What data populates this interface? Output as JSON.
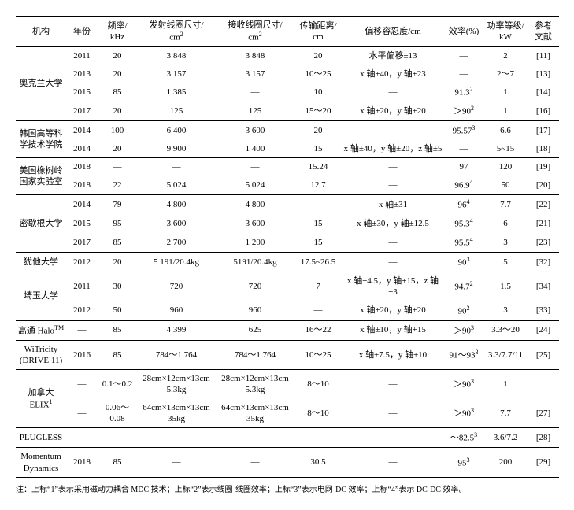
{
  "columns": [
    {
      "l1": "机构",
      "l2": ""
    },
    {
      "l1": "年份",
      "l2": ""
    },
    {
      "l1": "频率/",
      "l2": "kHz"
    },
    {
      "l1": "发射线圈尺寸/",
      "l2": "cm²"
    },
    {
      "l1": "接收线圈尺寸/",
      "l2": "cm²"
    },
    {
      "l1": "传输距离/",
      "l2": "cm"
    },
    {
      "l1": "偏移容忍度/cm",
      "l2": ""
    },
    {
      "l1": "效率(%)",
      "l2": ""
    },
    {
      "l1": "功率等级/",
      "l2": "kW"
    },
    {
      "l1": "参考",
      "l2": "文献"
    }
  ],
  "groups": [
    {
      "inst": "奥克兰大学",
      "rows": [
        {
          "year": "2011",
          "freq": "20",
          "tx": "3 848",
          "rx": "3 848",
          "dist": "20",
          "offs": "水平偏移±13",
          "eff": "—",
          "pwr": "2",
          "ref": "[11]"
        },
        {
          "year": "2013",
          "freq": "20",
          "tx": "3 157",
          "rx": "3 157",
          "dist": "10～25",
          "offs": "x 轴±40，y 轴±23",
          "eff": "—",
          "pwr": "2～7",
          "ref": "[13]"
        },
        {
          "year": "2015",
          "freq": "85",
          "tx": "1 385",
          "rx": "—",
          "dist": "10",
          "offs": "—",
          "eff": "91.3²",
          "pwr": "1",
          "ref": "[14]"
        },
        {
          "year": "2017",
          "freq": "20",
          "tx": "125",
          "rx": "125",
          "dist": "15～20",
          "offs": "x 轴±20，y 轴±20",
          "eff": "＞90²",
          "pwr": "1",
          "ref": "[16]"
        }
      ]
    },
    {
      "inst": "韩国高等科学技术学院",
      "rows": [
        {
          "year": "2014",
          "freq": "100",
          "tx": "6 400",
          "rx": "3 600",
          "dist": "20",
          "offs": "—",
          "eff": "95.57³",
          "pwr": "6.6",
          "ref": "[17]"
        },
        {
          "year": "2014",
          "freq": "20",
          "tx": "9 900",
          "rx": "1 400",
          "dist": "15",
          "offs": "x 轴±40，y 轴±20，z 轴±5",
          "eff": "—",
          "pwr": "5~15",
          "ref": "[18]"
        }
      ]
    },
    {
      "inst": "美国橡树岭国家实验室",
      "rows": [
        {
          "year": "2018",
          "freq": "—",
          "tx": "—",
          "rx": "—",
          "dist": "15.24",
          "offs": "—",
          "eff": "97",
          "pwr": "120",
          "ref": "[19]"
        },
        {
          "year": "2018",
          "freq": "22",
          "tx": "5 024",
          "rx": "5 024",
          "dist": "12.7",
          "offs": "—",
          "eff": "96.9⁴",
          "pwr": "50",
          "ref": "[20]"
        }
      ]
    },
    {
      "inst": "密歇根大学",
      "rows": [
        {
          "year": "2014",
          "freq": "79",
          "tx": "4 800",
          "rx": "4 800",
          "dist": "—",
          "offs": "x 轴±31",
          "eff": "96⁴",
          "pwr": "7.7",
          "ref": "[22]"
        },
        {
          "year": "2015",
          "freq": "95",
          "tx": "3 600",
          "rx": "3 600",
          "dist": "15",
          "offs": "x 轴±30，y 轴±12.5",
          "eff": "95.3⁴",
          "pwr": "6",
          "ref": "[21]"
        },
        {
          "year": "2017",
          "freq": "85",
          "tx": "2 700",
          "rx": "1 200",
          "dist": "15",
          "offs": "—",
          "eff": "95.5⁴",
          "pwr": "3",
          "ref": "[23]"
        }
      ]
    },
    {
      "inst": "犹他大学",
      "rows": [
        {
          "year": "2012",
          "freq": "20",
          "tx": "5 191/20.4kg",
          "rx": "5191/20.4kg",
          "dist": "17.5~26.5",
          "offs": "—",
          "eff": "90³",
          "pwr": "5",
          "ref": "[32]"
        }
      ]
    },
    {
      "inst": "埼玉大学",
      "rows": [
        {
          "year": "2011",
          "freq": "30",
          "tx": "720",
          "rx": "720",
          "dist": "7",
          "offs": "x 轴±4.5，y 轴±15，z 轴±3",
          "eff": "94.7²",
          "pwr": "1.5",
          "ref": "[34]"
        },
        {
          "year": "2012",
          "freq": "50",
          "tx": "960",
          "rx": "960",
          "dist": "—",
          "offs": "x 轴±20，y 轴±20",
          "eff": "90²",
          "pwr": "3",
          "ref": "[33]"
        }
      ]
    },
    {
      "inst": "高通 Halo™",
      "rows": [
        {
          "year": "—",
          "freq": "85",
          "tx": "4 399",
          "rx": "625",
          "dist": "16～22",
          "offs": "x 轴±10，y 轴+15",
          "eff": "＞90³",
          "pwr": "3.3～20",
          "ref": "[24]"
        }
      ]
    },
    {
      "inst": "WiTricity (DRIVE 11)",
      "rows": [
        {
          "year": "2016",
          "freq": "85",
          "tx": "784～1 764",
          "rx": "784～1 764",
          "dist": "10～25",
          "offs": "x 轴±7.5，y 轴±10",
          "eff": "91～93³",
          "pwr": "3.3/7.7/11",
          "ref": "[25]"
        }
      ]
    },
    {
      "inst": "加拿大 ELIX¹",
      "rows": [
        {
          "year": "—",
          "freq": "0.1～0.2",
          "tx": "28cm×12cm×13cm 5.3kg",
          "rx": "28cm×12cm×13cm 5.3kg",
          "dist": "8～10",
          "offs": "—",
          "eff": "＞90³",
          "pwr": "1",
          "ref": ""
        },
        {
          "year": "—",
          "freq": "0.06～0.08",
          "tx": "64cm×13cm×13cm 35kg",
          "rx": "64cm×13cm×13cm 35kg",
          "dist": "8～10",
          "offs": "—",
          "eff": "＞90³",
          "pwr": "7.7",
          "ref": "[27]"
        }
      ]
    },
    {
      "inst": "PLUGLESS",
      "rows": [
        {
          "year": "—",
          "freq": "—",
          "tx": "—",
          "rx": "—",
          "dist": "—",
          "offs": "—",
          "eff": "～82.5³",
          "pwr": "3.6/7.2",
          "ref": "[28]"
        }
      ]
    },
    {
      "inst": "Momentum Dynamics",
      "rows": [
        {
          "year": "2018",
          "freq": "85",
          "tx": "—",
          "rx": "—",
          "dist": "30.5",
          "offs": "—",
          "eff": "95³",
          "pwr": "200",
          "ref": "[29]"
        }
      ]
    }
  ],
  "footnote": "注：上标“1”表示采用磁动力耦合 MDC 技术；上标“2”表示线圈-线圈效率；上标“3”表示电网-DC 效率；上标“4”表示 DC-DC 效率。"
}
